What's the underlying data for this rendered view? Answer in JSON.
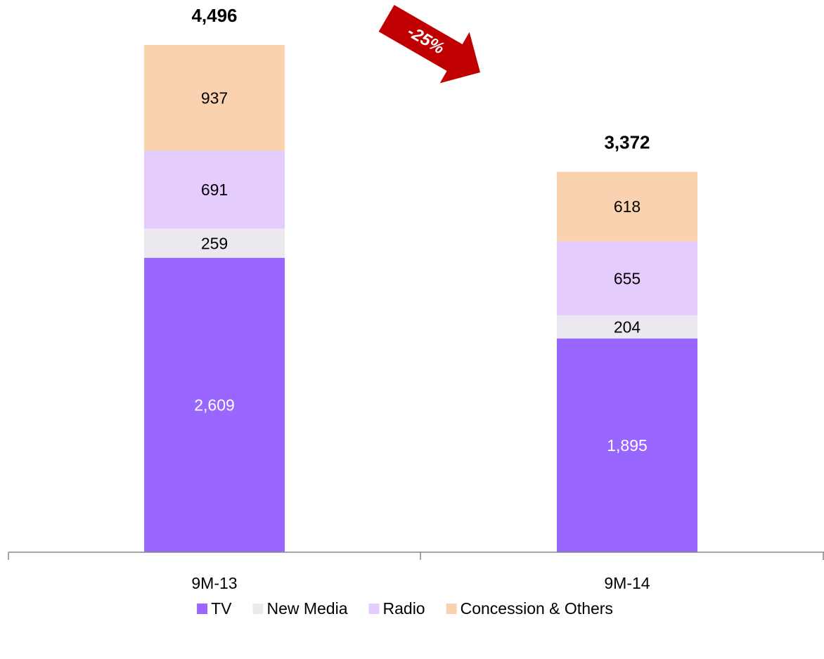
{
  "chart_data": {
    "type": "stacked-bar",
    "categories": [
      "9M-13",
      "9M-14"
    ],
    "series": [
      {
        "name": "TV",
        "color": "#9966ff",
        "values": [
          2609,
          1895
        ],
        "value_labels": [
          "2,609",
          "1,895"
        ]
      },
      {
        "name": "New Media",
        "color": "#ebe8f0",
        "values": [
          259,
          204
        ]
      },
      {
        "name": "Radio",
        "color": "#e5ccff",
        "values": [
          691,
          655
        ]
      },
      {
        "name": "Concession & Others",
        "color": "#fad2b0",
        "values": [
          937,
          618
        ]
      }
    ],
    "totals": [
      4496,
      3372
    ],
    "total_labels": [
      "4,496",
      "3,372"
    ],
    "annotation": "-25%",
    "ylim": [
      0,
      4496
    ],
    "legend": "bottom"
  }
}
